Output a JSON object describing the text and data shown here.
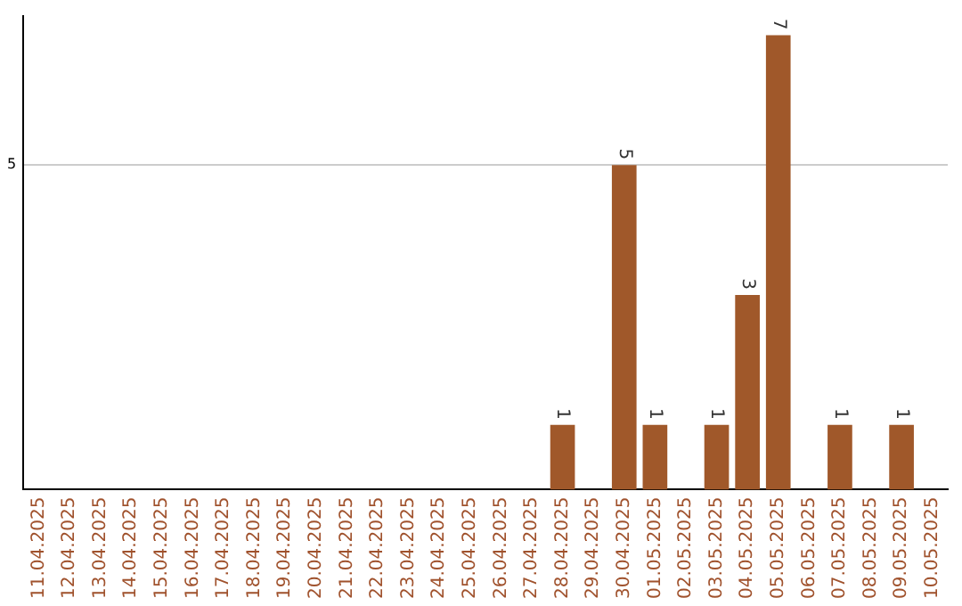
{
  "chart_data": {
    "type": "bar",
    "categories": [
      "11.04.2025",
      "12.04.2025",
      "13.04.2025",
      "14.04.2025",
      "15.04.2025",
      "16.04.2025",
      "17.04.2025",
      "18.04.2025",
      "19.04.2025",
      "20.04.2025",
      "21.04.2025",
      "22.04.2025",
      "23.04.2025",
      "24.04.2025",
      "25.04.2025",
      "26.04.2025",
      "27.04.2025",
      "28.04.2025",
      "29.04.2025",
      "30.04.2025",
      "01.05.2025",
      "02.05.2025",
      "03.05.2025",
      "04.05.2025",
      "05.05.2025",
      "06.05.2025",
      "07.05.2025",
      "08.05.2025",
      "09.05.2025",
      "10.05.2025"
    ],
    "values": [
      null,
      null,
      null,
      null,
      null,
      null,
      null,
      null,
      null,
      null,
      null,
      null,
      null,
      null,
      null,
      null,
      null,
      1,
      null,
      5,
      1,
      null,
      1,
      3,
      7,
      null,
      1,
      null,
      1,
      null
    ],
    "data_labels": true,
    "color": "#a0582a",
    "ylim": [
      0,
      7.3
    ],
    "yticks": [
      5
    ],
    "grid": "y"
  }
}
